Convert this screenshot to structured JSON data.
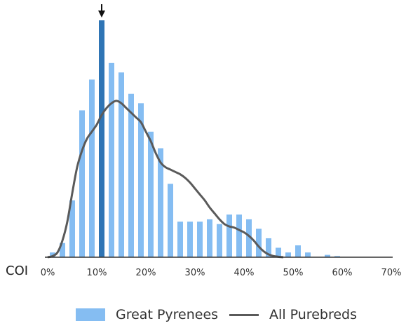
{
  "chart_data": {
    "type": "bar",
    "xlabel": "COI",
    "x_ticks": [
      "0%",
      "10%",
      "20%",
      "30%",
      "40%",
      "50%",
      "60%",
      "70%"
    ],
    "xlim": [
      0,
      70
    ],
    "ylim": [
      0,
      100
    ],
    "grid": false,
    "legend_position": "bottom",
    "highlight_value": 11,
    "series": [
      {
        "name": "Great Pyrenees",
        "color": "#85bdf2",
        "highlight_color": "#2f75b5",
        "x": [
          1,
          3,
          5,
          7,
          9,
          11,
          13,
          15,
          17,
          19,
          21,
          23,
          25,
          27,
          29,
          31,
          33,
          35,
          37,
          39,
          41,
          43,
          45,
          47,
          49,
          51,
          53,
          55,
          57,
          59
        ],
        "values": [
          2,
          6,
          24,
          62,
          75,
          100,
          82,
          78,
          69,
          65,
          53,
          46,
          31,
          15,
          15,
          15,
          16,
          14,
          18,
          18,
          16,
          12,
          8,
          4,
          2,
          5,
          2,
          0,
          1,
          0.5
        ]
      },
      {
        "name": "All Purebreds",
        "type": "line",
        "color": "#5a5a5a",
        "x": [
          0,
          1,
          2,
          3,
          4,
          5,
          6,
          7,
          8,
          9,
          10,
          11,
          12,
          13,
          14,
          15,
          16,
          17,
          18,
          19,
          20,
          21,
          22,
          23,
          24,
          25,
          26,
          27,
          28,
          29,
          30,
          31,
          32,
          33,
          34,
          35,
          36,
          37,
          38,
          39,
          40,
          41,
          42,
          43,
          44,
          45,
          46,
          47,
          48
        ],
        "values": [
          0,
          0.5,
          2,
          7,
          15,
          27,
          38,
          45,
          50,
          53,
          56,
          60,
          63,
          65,
          66,
          65,
          63,
          61,
          59,
          57,
          53,
          49,
          44,
          40,
          38,
          37,
          36,
          35,
          33.5,
          31.5,
          29,
          26.5,
          24,
          21,
          18.5,
          16,
          14,
          13,
          12.5,
          11.5,
          10.5,
          9,
          7,
          4.5,
          2.5,
          1.2,
          0.5,
          0.2,
          0
        ]
      }
    ]
  }
}
